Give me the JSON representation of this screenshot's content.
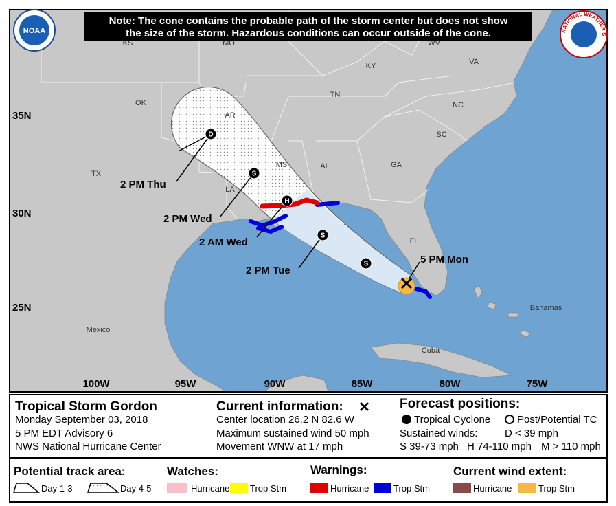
{
  "header": {
    "note": [
      "Note: The cone contains the probable path of the storm center but does not show",
      "the size of the storm. Hazardous conditions can occur outside of the cone."
    ],
    "noaa_logo": "NOAA",
    "nws_logo": "NATIONAL WEATHER SERVICE"
  },
  "map": {
    "places": [
      "KS",
      "MO",
      "WV",
      "KY",
      "VA",
      "OK",
      "TN",
      "NC",
      "AR",
      "SC",
      "TX",
      "MS",
      "AL",
      "GA",
      "LA",
      "FL",
      "Mexico",
      "Cuba",
      "Bahamas"
    ],
    "latitudes": [
      "35N",
      "30N",
      "25N"
    ],
    "longitudes": [
      "100W",
      "95W",
      "90W",
      "85W",
      "80W",
      "75W"
    ],
    "forecast_times": [
      "2 PM Thu",
      "2 PM Wed",
      "2 AM Wed",
      "2 PM Tue",
      "5 PM Mon"
    ],
    "positions": [
      "D",
      "S",
      "H",
      "S",
      "S"
    ]
  },
  "storm": {
    "name": "Tropical Storm Gordon",
    "date": "Monday September 03, 2018",
    "advisory": "5 PM EDT Advisory 6",
    "source": "NWS National Hurricane Center"
  },
  "current": {
    "title": "Current information:",
    "lines": [
      "Center location 26.2 N 82.6 W",
      "Maximum sustained wind 50 mph",
      "Movement WNW at 17 mph"
    ]
  },
  "forecast": {
    "title": "Forecast positions:",
    "tropical": "Tropical Cyclone",
    "post": "Post/Potential TC",
    "winds_title": "Sustained winds:",
    "d": "D < 39 mph",
    "s": "S 39-73 mph",
    "h": "H 74-110 mph",
    "m": "M > 110 mph"
  },
  "legend": {
    "track_title": "Potential track area:",
    "day13": "Day 1-3",
    "day45": "Day 4-5",
    "watches_title": "Watches:",
    "watch_hurricane": "Hurricane",
    "watch_tropstm": "Trop Stm",
    "warnings_title": "Warnings:",
    "warning_hurricane": "Hurricane",
    "warning_tropstm": "Trop Stm",
    "wind_title": "Current wind extent:",
    "wind_hurricane": "Hurricane",
    "wind_tropstm": "Trop Stm"
  }
}
